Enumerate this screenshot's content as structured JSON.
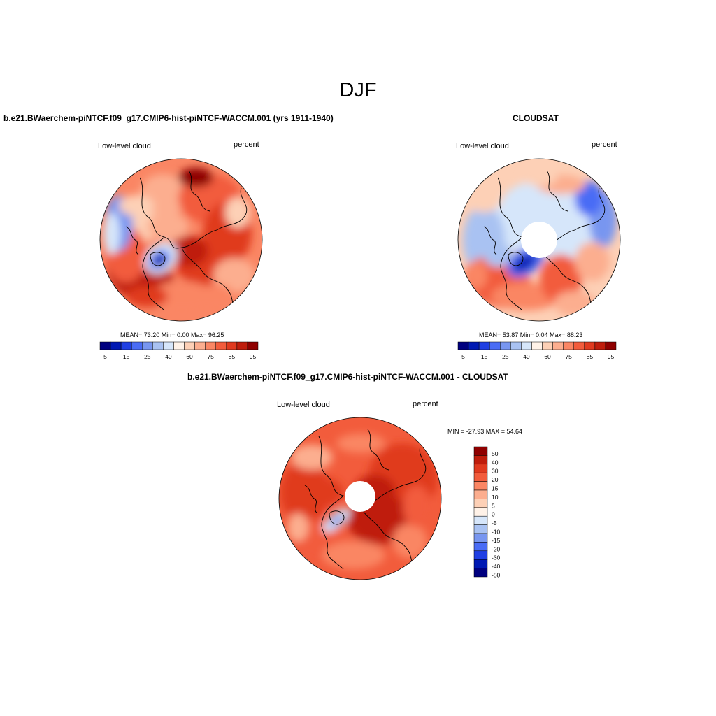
{
  "figure": {
    "title": "DJF"
  },
  "colors": {
    "levels_abs": [
      "#00007f",
      "#0019b3",
      "#1f3fe3",
      "#4a6cf5",
      "#7896f0",
      "#a9c2f2",
      "#d6e6fa",
      "#fff2e8",
      "#fdd0b6",
      "#fcae8f",
      "#fa8664",
      "#f25c3c",
      "#e03a1f",
      "#bf1d0c",
      "#8f0000"
    ],
    "levels_diff": [
      "#00007f",
      "#0019b3",
      "#1f3fe3",
      "#4a6cf5",
      "#7896f0",
      "#a9c2f2",
      "#d6e6fa",
      "#fff2e8",
      "#fdd0b6",
      "#fcae8f",
      "#fa8664",
      "#f25c3c",
      "#e03a1f",
      "#bf1d0c",
      "#8f0000"
    ],
    "coast": "#000000",
    "map_border": "#000000"
  },
  "chart_data": [
    {
      "type": "heatmap",
      "projection": "north-polar-stereographic",
      "title": "b.e21.BWaerchem-piNTCF.f09_g17.CMIP6-hist-piNTCF-WACCM.001 (yrs 1911-1940)",
      "left_label": "Low-level cloud",
      "right_label": "percent",
      "stats": {
        "mean": "73.20",
        "min": "0.00",
        "max": "96.25"
      },
      "stats_text": "MEAN=  73.20  Min=    0.00  Max=  96.25",
      "colorbar": {
        "orientation": "horizontal",
        "levels": [
          5,
          10,
          15,
          20,
          25,
          30,
          40,
          50,
          60,
          70,
          75,
          80,
          85,
          90,
          95
        ],
        "tick_labels": [
          "5",
          "15",
          "25",
          "40",
          "60",
          "75",
          "85",
          "95"
        ]
      },
      "missing_pole": false
    },
    {
      "type": "heatmap",
      "projection": "north-polar-stereographic",
      "title": "CLOUDSAT",
      "left_label": "Low-level cloud",
      "right_label": "percent",
      "stats": {
        "mean": "53.87",
        "min": "0.04",
        "max": "88.23"
      },
      "stats_text": "MEAN=  53.87  Min=    0.04  Max=  88.23",
      "colorbar": {
        "orientation": "horizontal",
        "levels": [
          5,
          10,
          15,
          20,
          25,
          30,
          40,
          50,
          60,
          70,
          75,
          80,
          85,
          90,
          95
        ],
        "tick_labels": [
          "5",
          "15",
          "25",
          "40",
          "60",
          "75",
          "85",
          "95"
        ]
      },
      "missing_pole": true
    },
    {
      "type": "heatmap",
      "projection": "north-polar-stereographic",
      "title": "b.e21.BWaerchem-piNTCF.f09_g17.CMIP6-hist-piNTCF-WACCM.001 - CLOUDSAT",
      "left_label": "Low-level cloud",
      "right_label": "percent",
      "stats": {
        "min": "-27.93",
        "max": "54.64"
      },
      "stats_text": "MIN = -27.93 MAX =  54.64",
      "colorbar": {
        "orientation": "vertical",
        "levels": [
          -50,
          -40,
          -30,
          -20,
          -15,
          -10,
          -5,
          0,
          5,
          10,
          15,
          20,
          30,
          40,
          50
        ],
        "tick_labels": [
          "50",
          "40",
          "30",
          "20",
          "15",
          "10",
          "5",
          "0",
          "-5",
          "-10",
          "-15",
          "-20",
          "-30",
          "-40",
          "-50"
        ]
      },
      "missing_pole": true
    }
  ]
}
